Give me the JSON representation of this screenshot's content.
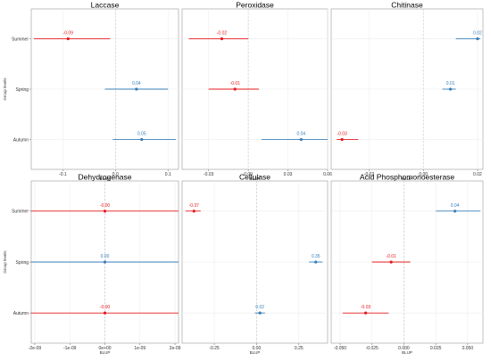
{
  "chart_data": [
    {
      "type": "forest",
      "title": "Laccase",
      "xlabel": "BLUP",
      "ylabel": "Group levels",
      "categories": [
        "Summer",
        "Spring",
        "Autumn"
      ],
      "xlim": [
        -0.16,
        0.12
      ],
      "xticks": [
        -0.1,
        0.0,
        0.1
      ],
      "xtick_labels": [
        "-0.1",
        "0.0",
        "0.1"
      ],
      "points": [
        {
          "group": "Summer",
          "value": -0.09,
          "low": -0.155,
          "high": -0.01,
          "label": "-0.09",
          "color": "#e41a1c"
        },
        {
          "group": "Spring",
          "value": 0.04,
          "low": -0.02,
          "high": 0.1,
          "label": "0.04",
          "color": "#377eb8"
        },
        {
          "group": "Autumn",
          "value": 0.05,
          "low": -0.005,
          "high": 0.115,
          "label": "0.05",
          "color": "#377eb8"
        }
      ],
      "grid": true
    },
    {
      "type": "forest",
      "title": "Peroxidase",
      "xlabel": "BLUP",
      "ylabel": "",
      "categories": [
        "Summer",
        "Spring",
        "Autumn"
      ],
      "xlim": [
        -0.05,
        0.06
      ],
      "xticks": [
        -0.03,
        0.0,
        0.03,
        0.06
      ],
      "xtick_labels": [
        "-0.03",
        "0.00",
        "0.03",
        "0.06"
      ],
      "points": [
        {
          "group": "Summer",
          "value": -0.02,
          "low": -0.045,
          "high": 0.0,
          "label": "-0.02",
          "color": "#e41a1c"
        },
        {
          "group": "Spring",
          "value": -0.01,
          "low": -0.03,
          "high": 0.008,
          "label": "-0.01",
          "color": "#e41a1c"
        },
        {
          "group": "Autumn",
          "value": 0.04,
          "low": 0.01,
          "high": 0.06,
          "label": "0.04",
          "color": "#377eb8"
        }
      ],
      "grid": true
    },
    {
      "type": "forest",
      "title": "Chitinase",
      "xlabel": "BLUP",
      "ylabel": "",
      "categories": [
        "Summer",
        "Spring",
        "Autumn"
      ],
      "xlim": [
        -0.034,
        0.022
      ],
      "xticks": [
        -0.02,
        0.0,
        0.02
      ],
      "xtick_labels": [
        "-0.02",
        "0.00",
        "0.02"
      ],
      "points": [
        {
          "group": "Summer",
          "value": 0.02,
          "low": 0.012,
          "high": 0.021,
          "label": "0.02",
          "color": "#377eb8"
        },
        {
          "group": "Spring",
          "value": 0.01,
          "low": 0.007,
          "high": 0.012,
          "label": "0.01",
          "color": "#377eb8"
        },
        {
          "group": "Autumn",
          "value": -0.03,
          "low": -0.032,
          "high": -0.024,
          "label": "-0.03",
          "color": "#e41a1c"
        }
      ],
      "grid": true
    },
    {
      "type": "forest",
      "title": "Dehydrogenase",
      "xlabel": "BLUP",
      "ylabel": "Group levels",
      "categories": [
        "Summer",
        "Spring",
        "Autumn"
      ],
      "xlim": [
        -2.1e-09,
        2.1e-09
      ],
      "xticks": [
        -2e-09,
        -1e-09,
        0,
        1e-09,
        2e-09
      ],
      "xtick_labels": [
        "-2e-09",
        "-1e-09",
        "0e+00",
        "1e-09",
        "2e-09"
      ],
      "points": [
        {
          "group": "Summer",
          "value": 0,
          "low": -2.1e-09,
          "high": 2.1e-09,
          "label": "-0.00",
          "color": "#e41a1c"
        },
        {
          "group": "Spring",
          "value": 0,
          "low": -2.1e-09,
          "high": 2.1e-09,
          "label": "0.00",
          "color": "#377eb8"
        },
        {
          "group": "Autumn",
          "value": 0,
          "low": -2.1e-09,
          "high": 2.1e-09,
          "label": "-0.00",
          "color": "#e41a1c"
        }
      ],
      "grid": true
    },
    {
      "type": "forest",
      "title": "Cellulase",
      "xlabel": "BLUP",
      "ylabel": "",
      "categories": [
        "Summer",
        "Spring",
        "Autumn"
      ],
      "xlim": [
        -0.44,
        0.42
      ],
      "xticks": [
        -0.25,
        0.0,
        0.25
      ],
      "xtick_labels": [
        "-0.25",
        "0.00",
        "0.25"
      ],
      "points": [
        {
          "group": "Summer",
          "value": -0.37,
          "low": -0.42,
          "high": -0.33,
          "label": "-0.37",
          "color": "#e41a1c"
        },
        {
          "group": "Spring",
          "value": 0.35,
          "low": 0.31,
          "high": 0.39,
          "label": "0.35",
          "color": "#377eb8"
        },
        {
          "group": "Autumn",
          "value": 0.02,
          "low": -0.01,
          "high": 0.05,
          "label": "0.02",
          "color": "#377eb8"
        }
      ],
      "grid": true
    },
    {
      "type": "forest",
      "title": "Acid Phosphomonoesterase",
      "xlabel": "BLUP",
      "ylabel": "",
      "categories": [
        "Summer",
        "Spring",
        "Autumn"
      ],
      "xlim": [
        -0.057,
        0.062
      ],
      "xticks": [
        -0.05,
        -0.025,
        0.0,
        0.025,
        0.05
      ],
      "xtick_labels": [
        "-0.050",
        "-0.025",
        "0.000",
        "0.025",
        "0.050"
      ],
      "points": [
        {
          "group": "Summer",
          "value": 0.04,
          "low": 0.025,
          "high": 0.06,
          "label": "0.04",
          "color": "#377eb8"
        },
        {
          "group": "Spring",
          "value": -0.01,
          "low": -0.025,
          "high": 0.005,
          "label": "-0.01",
          "color": "#e41a1c"
        },
        {
          "group": "Autumn",
          "value": -0.03,
          "low": -0.048,
          "high": -0.012,
          "label": "-0.03",
          "color": "#e41a1c"
        }
      ],
      "grid": true
    }
  ]
}
